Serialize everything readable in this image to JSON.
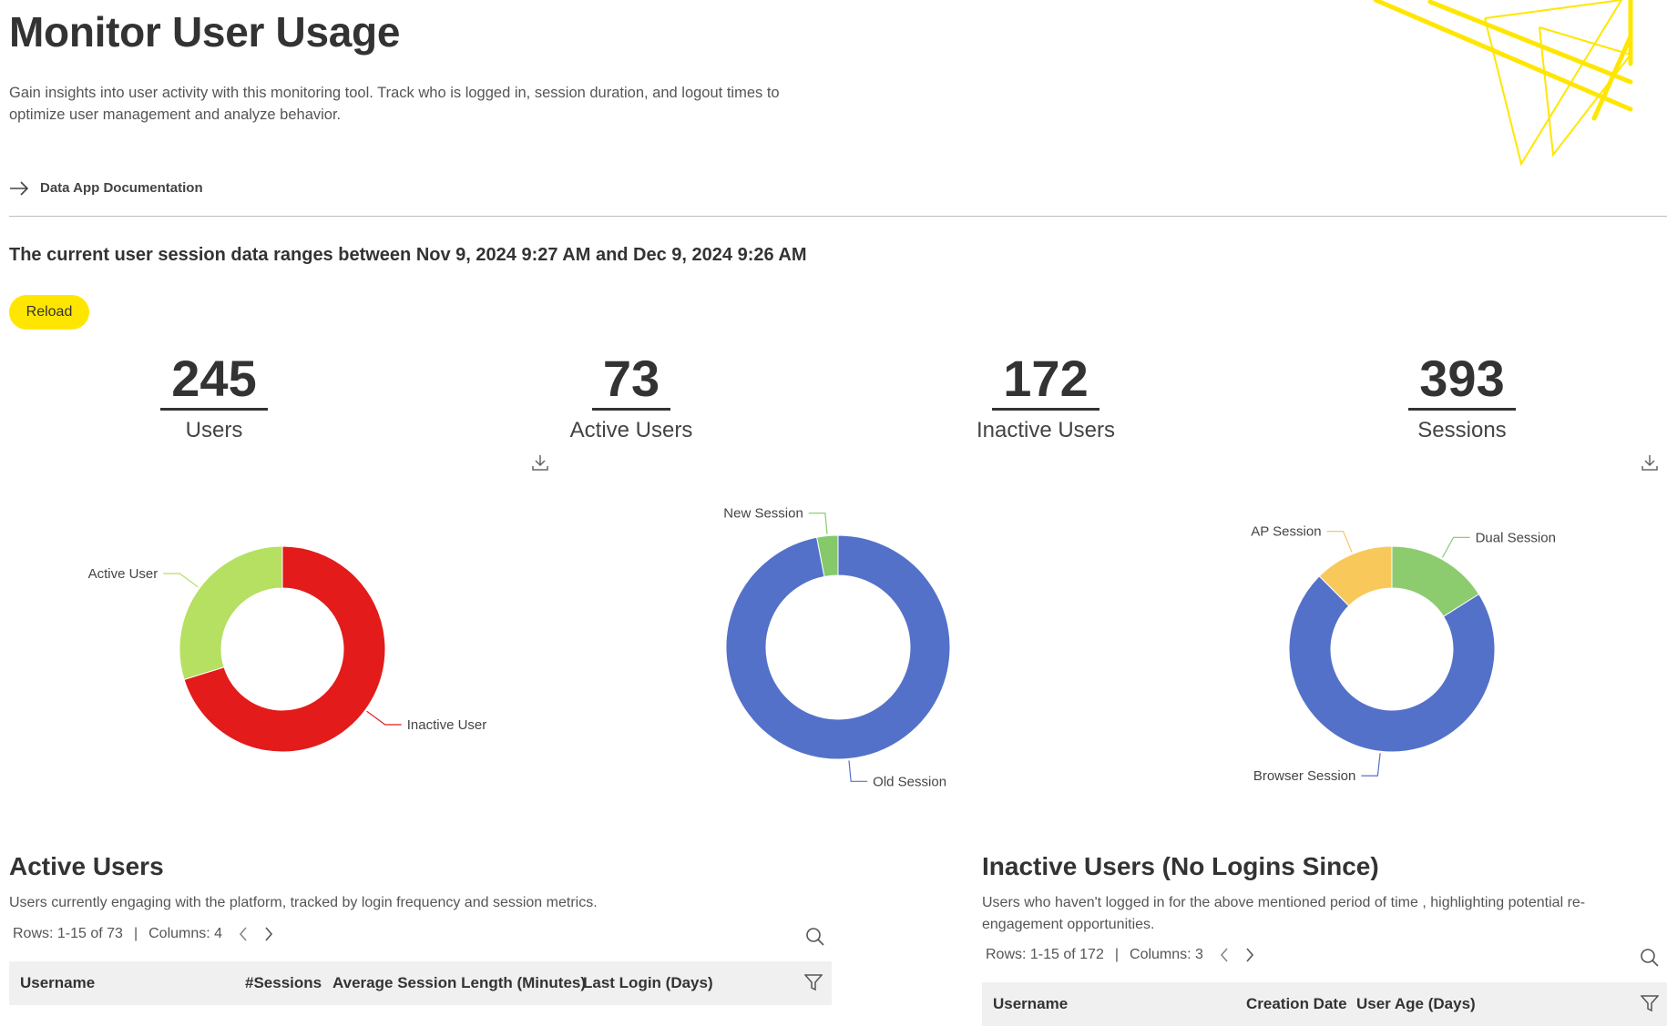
{
  "header": {
    "title": "Monitor User Usage",
    "description": "Gain insights into user activity with this monitoring tool. Track who is logged in, session duration, and logout times to optimize user management and analyze behavior.",
    "doc_link": "Data App Documentation",
    "accent_color": "#FFE600"
  },
  "range_text": "The current user session data ranges between Nov 9, 2024 9:27 AM and Dec 9, 2024 9:26 AM",
  "reload_label": "Reload",
  "metrics": [
    {
      "value": "245",
      "label": "Users"
    },
    {
      "value": "73",
      "label": "Active Users"
    },
    {
      "value": "172",
      "label": "Inactive Users"
    },
    {
      "value": "393",
      "label": "Sessions"
    }
  ],
  "chart_data": [
    {
      "type": "pie",
      "donut": true,
      "categories": [
        "Active User",
        "Inactive User"
      ],
      "values": [
        73,
        172
      ],
      "colors": [
        "#B5E061",
        "#E31B1B"
      ]
    },
    {
      "type": "pie",
      "donut": true,
      "categories": [
        "New Session",
        "Old Session"
      ],
      "values": [
        12,
        381
      ],
      "colors": [
        "#86C96B",
        "#5471C9"
      ]
    },
    {
      "type": "pie",
      "donut": true,
      "categories": [
        "AP Session",
        "Dual Session",
        "Browser Session"
      ],
      "values": [
        49,
        63,
        281
      ],
      "colors": [
        "#F9C85B",
        "#8DCB6F",
        "#5471C9"
      ]
    }
  ],
  "active_section": {
    "title": "Active Users",
    "description": "Users currently engaging with the platform, tracked by login frequency and session metrics.",
    "rows_text": "Rows: 1-15 of 73",
    "columns_text": "Columns: 4",
    "columns": [
      "Username",
      "#Sessions",
      "Average Session Length (Minutes)",
      "Last Login (Days)"
    ]
  },
  "inactive_section": {
    "title": "Inactive Users (No Logins Since)",
    "description": "Users who haven't logged in for the above mentioned period of time , highlighting potential re-engagement opportunities.",
    "rows_text": "Rows: 1-15 of 172",
    "columns_text": "Columns: 3",
    "columns": [
      "Username",
      "Creation Date",
      "User Age (Days)"
    ]
  },
  "icons": {
    "arrow": "arrow-right-icon",
    "download": "download-icon",
    "search": "search-icon",
    "filter": "filter-icon",
    "prev": "chevron-left-icon",
    "next": "chevron-right-icon"
  }
}
